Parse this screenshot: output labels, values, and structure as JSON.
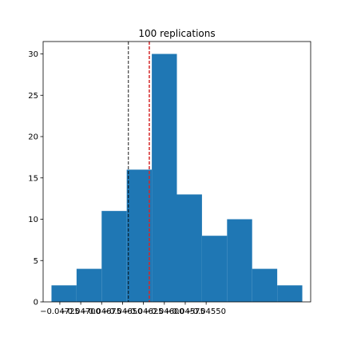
{
  "chart_data": {
    "type": "bar",
    "title": "100 replications",
    "xlabel": "",
    "ylabel": "",
    "bins": [
      {
        "x0": -0.04735,
        "x1": -0.04705,
        "count": 2
      },
      {
        "x0": -0.04705,
        "x1": -0.04675,
        "count": 4
      },
      {
        "x0": -0.04675,
        "x1": -0.04645,
        "count": 11
      },
      {
        "x0": -0.04645,
        "x1": -0.04615,
        "count": 16
      },
      {
        "x0": -0.04615,
        "x1": -0.04585,
        "count": 30
      },
      {
        "x0": -0.04585,
        "x1": -0.04555,
        "count": 13
      },
      {
        "x0": -0.04555,
        "x1": -0.04525,
        "count": 8
      },
      {
        "x0": -0.04525,
        "x1": -0.04495,
        "count": 10
      },
      {
        "x0": -0.04495,
        "x1": -0.04465,
        "count": 4
      },
      {
        "x0": -0.04465,
        "x1": -0.04435,
        "count": 2
      }
    ],
    "xlim": [
      -0.04745,
      -0.04425
    ],
    "ylim": [
      0,
      31.5
    ],
    "xticks": [
      -0.04725,
      -0.047,
      -0.04675,
      -0.0465,
      -0.04625,
      -0.046,
      -0.04575,
      -0.0455
    ],
    "xtick_labels": [
      "−0.04725",
      "−0.04700",
      "−0.04675",
      "−0.04650",
      "−0.04625",
      "−0.04600",
      "−0.04575",
      "−0.04550"
    ],
    "yticks": [
      0,
      5,
      10,
      15,
      20,
      25,
      30
    ],
    "ytick_labels": [
      "0",
      "5",
      "10",
      "15",
      "20",
      "25",
      "30"
    ],
    "vlines": [
      {
        "x": -0.04643,
        "color": "#000000",
        "style": "dashed"
      },
      {
        "x": -0.04618,
        "color": "#d62728",
        "style": "dashed"
      }
    ],
    "bar_color": "#1f77b4",
    "grid": false,
    "legend": "none"
  }
}
